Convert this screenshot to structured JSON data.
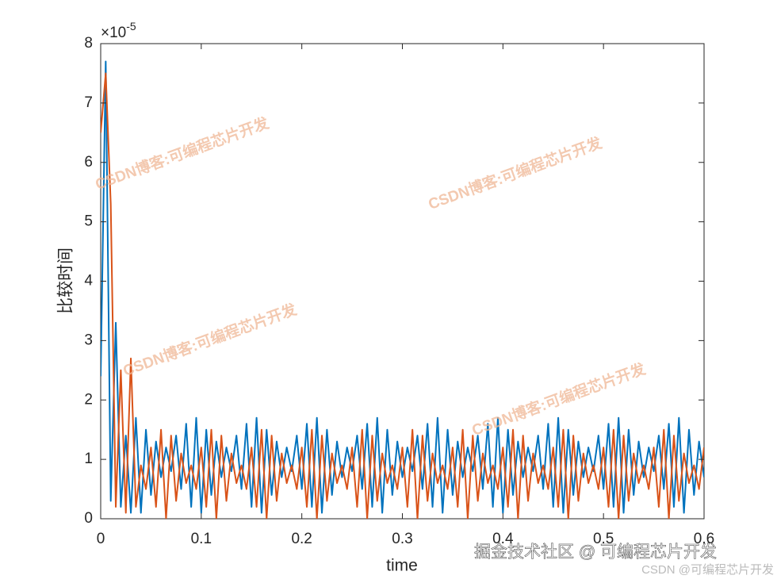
{
  "chart_data": {
    "type": "line",
    "xlabel": "time",
    "ylabel": "比较时间",
    "y_multiplier": "×10",
    "y_multiplier_exponent": "-5",
    "x": [
      0,
      0.005,
      0.01,
      0.015,
      0.02,
      0.025,
      0.03,
      0.035,
      0.04,
      0.045,
      0.05,
      0.055,
      0.06,
      0.065,
      0.07,
      0.075,
      0.08,
      0.085,
      0.09,
      0.095,
      0.1,
      0.105,
      0.11,
      0.115,
      0.12,
      0.125,
      0.13,
      0.135,
      0.14,
      0.145,
      0.15,
      0.155,
      0.16,
      0.165,
      0.17,
      0.175,
      0.18,
      0.185,
      0.19,
      0.195,
      0.2,
      0.205,
      0.21,
      0.215,
      0.22,
      0.225,
      0.23,
      0.235,
      0.24,
      0.245,
      0.25,
      0.255,
      0.26,
      0.265,
      0.27,
      0.275,
      0.28,
      0.285,
      0.29,
      0.295,
      0.3,
      0.305,
      0.31,
      0.315,
      0.32,
      0.325,
      0.33,
      0.335,
      0.34,
      0.345,
      0.35,
      0.355,
      0.36,
      0.365,
      0.37,
      0.375,
      0.38,
      0.385,
      0.39,
      0.395,
      0.4,
      0.405,
      0.41,
      0.415,
      0.42,
      0.425,
      0.43,
      0.435,
      0.44,
      0.445,
      0.45,
      0.455,
      0.46,
      0.465,
      0.47,
      0.475,
      0.48,
      0.485,
      0.49,
      0.495,
      0.5,
      0.505,
      0.51,
      0.515,
      0.52,
      0.525,
      0.53,
      0.535,
      0.54,
      0.545,
      0.55,
      0.555,
      0.56,
      0.565,
      0.57,
      0.575,
      0.58,
      0.585,
      0.59,
      0.595,
      0.6
    ],
    "series": [
      {
        "color": "#0072BD",
        "values": [
          2.4,
          7.7,
          0.3,
          3.3,
          0.2,
          1.4,
          0.1,
          1.7,
          0.1,
          1.5,
          0.4,
          1.3,
          0.7,
          1.2,
          0.8,
          1.4,
          0.5,
          1.6,
          0.2,
          1.7,
          0.1,
          1.5,
          0.4,
          1.3,
          0.7,
          1.2,
          0.8,
          1.4,
          0.5,
          1.6,
          0.2,
          1.7,
          0.1,
          1.5,
          0.4,
          1.3,
          0.7,
          1.2,
          0.8,
          1.4,
          0.5,
          1.6,
          0.2,
          1.7,
          0.1,
          1.5,
          0.4,
          1.3,
          0.7,
          1.2,
          0.8,
          1.4,
          0.5,
          1.6,
          0.2,
          1.7,
          0.1,
          1.5,
          0.4,
          1.3,
          0.7,
          1.2,
          0.8,
          1.4,
          0.5,
          1.6,
          0.2,
          1.7,
          0.1,
          1.5,
          0.4,
          1.3,
          0.7,
          1.2,
          0.8,
          1.4,
          0.5,
          1.6,
          0.2,
          1.7,
          0.1,
          1.5,
          0.4,
          1.3,
          0.7,
          1.2,
          0.8,
          1.4,
          0.5,
          1.6,
          0.2,
          1.7,
          0.1,
          1.5,
          0.4,
          1.3,
          0.7,
          1.2,
          0.8,
          1.4,
          0.5,
          1.6,
          0.2,
          1.7,
          0.1,
          1.5,
          0.4,
          1.3,
          0.7,
          1.2,
          0.8,
          1.4,
          0.5,
          1.6,
          0.2,
          1.7,
          0.1,
          1.5,
          0.4,
          1.3,
          0.7
        ]
      },
      {
        "color": "#D95319",
        "values": [
          6.5,
          7.5,
          5.3,
          0.2,
          2.5,
          0.1,
          2.7,
          0.2,
          0.9,
          0.5,
          1.2,
          0.2,
          1.5,
          0.0,
          1.4,
          0.3,
          1.1,
          0.6,
          0.9,
          0.5,
          1.2,
          0.2,
          1.5,
          0.0,
          1.4,
          0.3,
          1.1,
          0.6,
          0.9,
          0.5,
          1.2,
          0.2,
          1.5,
          0.0,
          1.4,
          0.3,
          1.1,
          0.6,
          0.9,
          0.5,
          1.2,
          0.2,
          1.5,
          0.0,
          1.4,
          0.3,
          1.1,
          0.6,
          0.9,
          0.5,
          1.2,
          0.2,
          1.5,
          0.0,
          1.4,
          0.3,
          1.1,
          0.6,
          0.9,
          0.5,
          1.2,
          0.2,
          1.5,
          0.0,
          1.4,
          0.3,
          1.1,
          0.6,
          0.9,
          0.5,
          1.2,
          0.2,
          1.5,
          0.0,
          1.4,
          0.3,
          1.1,
          0.6,
          0.9,
          0.5,
          1.2,
          0.2,
          1.5,
          0.0,
          1.4,
          0.3,
          1.1,
          0.6,
          0.9,
          0.5,
          1.2,
          0.2,
          1.5,
          0.0,
          1.4,
          0.3,
          1.1,
          0.6,
          0.9,
          0.5,
          1.2,
          0.2,
          1.5,
          0.0,
          1.4,
          0.3,
          1.1,
          0.6,
          0.9,
          0.5,
          1.2,
          0.2,
          1.5,
          0.0,
          1.4,
          0.3,
          1.1,
          0.6,
          0.9,
          0.5,
          1.2
        ]
      }
    ],
    "xlim": [
      0,
      0.6
    ],
    "xticks": [
      0,
      0.1,
      0.2,
      0.3,
      0.4,
      0.5,
      0.6
    ],
    "ylim": [
      0,
      8
    ],
    "yticks": [
      0,
      1,
      2,
      3,
      4,
      5,
      6,
      7,
      8
    ],
    "grid": false,
    "watermarks": [
      "CSDN博客:可编程芯片开发",
      "CSDN博客:可编程芯片开发",
      "CSDN博客:可编程芯片开发",
      "CSDN博客:可编程芯片开发"
    ],
    "footer_texts": [
      "掘金技术社区 @ 可编程芯片开发",
      "CSDN @可编程芯片开发"
    ]
  }
}
